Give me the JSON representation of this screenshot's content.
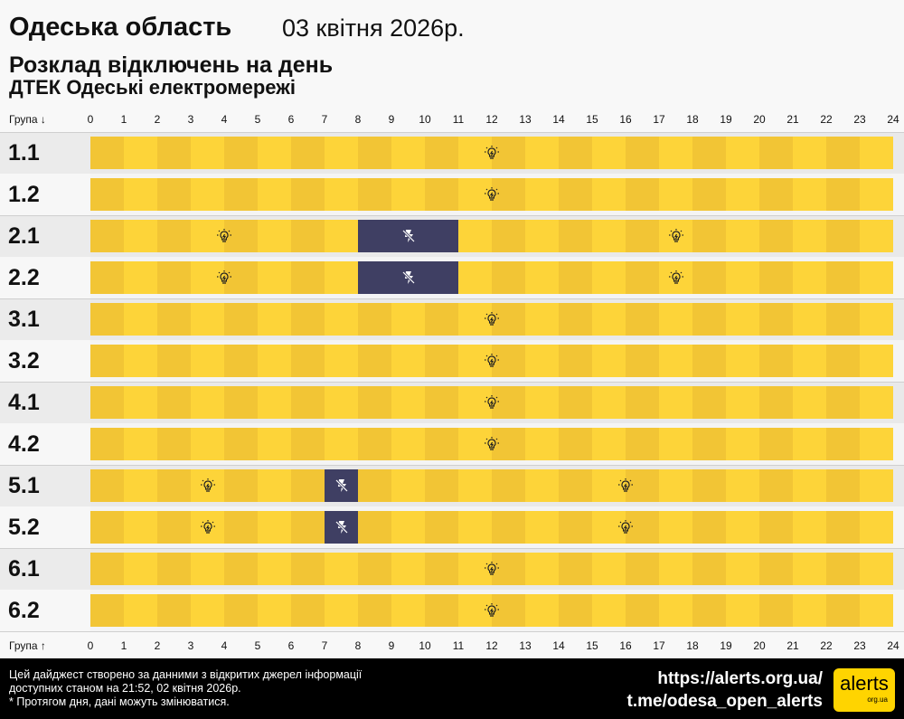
{
  "header": {
    "region": "Одеська область",
    "date": "03 квітня 2026р.",
    "subtitle": "Розклад відключень на день",
    "provider": "ДТЕК Одеські електромережі"
  },
  "axis": {
    "top_label": "Група ↓",
    "bottom_label": "Група ↑",
    "hours": [
      "0",
      "1",
      "2",
      "3",
      "4",
      "5",
      "6",
      "7",
      "8",
      "9",
      "10",
      "11",
      "12",
      "13",
      "14",
      "15",
      "16",
      "17",
      "18",
      "19",
      "20",
      "21",
      "22",
      "23",
      "24"
    ]
  },
  "colors": {
    "power_on_dark": "#f2c535",
    "power_on_light": "#fdd439",
    "outage": "#3f3f63",
    "label_bg_odd": "#ebebeb",
    "label_bg_even": "#f7f7f7"
  },
  "groups": [
    {
      "name": "1.1",
      "outages": [],
      "on_icons": [
        12
      ]
    },
    {
      "name": "1.2",
      "outages": [],
      "on_icons": [
        12
      ]
    },
    {
      "name": "2.1",
      "outages": [
        [
          8,
          11
        ]
      ],
      "on_icons": [
        4,
        17.5
      ],
      "off_icons": [
        9.5
      ]
    },
    {
      "name": "2.2",
      "outages": [
        [
          8,
          11
        ]
      ],
      "on_icons": [
        4,
        17.5
      ],
      "off_icons": [
        9.5
      ]
    },
    {
      "name": "3.1",
      "outages": [],
      "on_icons": [
        12
      ]
    },
    {
      "name": "3.2",
      "outages": [],
      "on_icons": [
        12
      ]
    },
    {
      "name": "4.1",
      "outages": [],
      "on_icons": [
        12
      ]
    },
    {
      "name": "4.2",
      "outages": [],
      "on_icons": [
        12
      ]
    },
    {
      "name": "5.1",
      "outages": [
        [
          7,
          8
        ]
      ],
      "on_icons": [
        3.5,
        16
      ],
      "off_icons": [
        7.5
      ]
    },
    {
      "name": "5.2",
      "outages": [
        [
          7,
          8
        ]
      ],
      "on_icons": [
        3.5,
        16
      ],
      "off_icons": [
        7.5
      ]
    },
    {
      "name": "6.1",
      "outages": [],
      "on_icons": [
        12
      ]
    },
    {
      "name": "6.2",
      "outages": [],
      "on_icons": [
        12
      ]
    }
  ],
  "footer": {
    "note1": "Цей дайджест створено за данними з відкритих джерел інформації",
    "note2": "доступних станом на 21:52, 02 квітня 2026р.",
    "note3": "* Протягом дня, дані можуть змінюватися.",
    "url": "https://alerts.org.ua/",
    "telegram": "t.me/odesa_open_alerts",
    "logo_text": "alerts",
    "logo_sub": "org.ua"
  }
}
